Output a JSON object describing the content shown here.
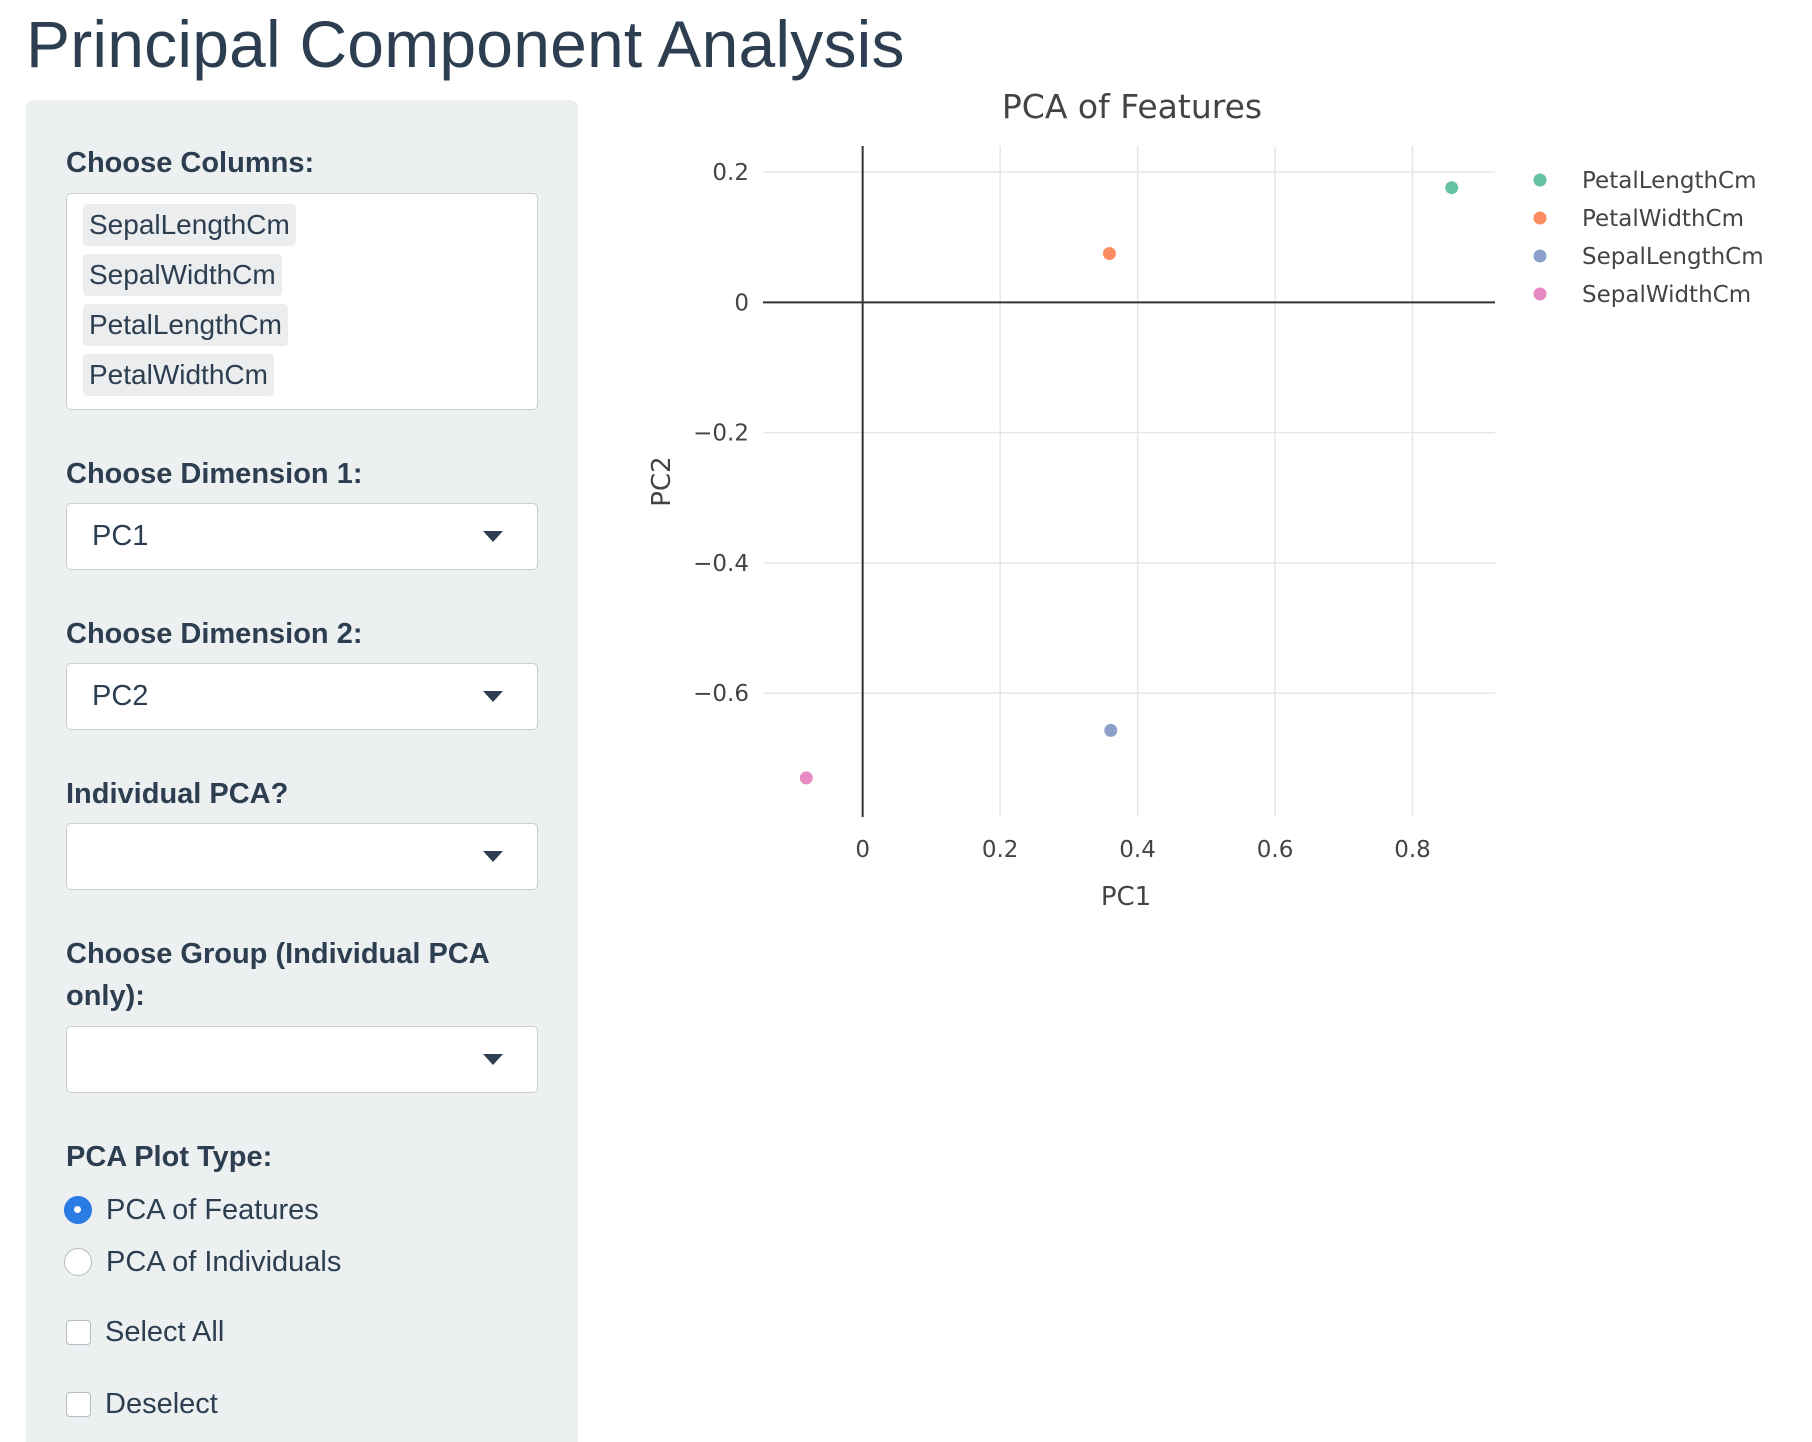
{
  "page": {
    "title": "Principal Component Analysis"
  },
  "sidebar": {
    "columns": {
      "label": "Choose Columns:",
      "selected": [
        "SepalLengthCm",
        "SepalWidthCm",
        "PetalLengthCm",
        "PetalWidthCm"
      ]
    },
    "dim1": {
      "label": "Choose Dimension 1:",
      "value": "PC1"
    },
    "dim2": {
      "label": "Choose Dimension 2:",
      "value": "PC2"
    },
    "individual": {
      "label": "Individual PCA?",
      "value": ""
    },
    "group": {
      "label": "Choose Group (Individual PCA only):",
      "value": ""
    },
    "plot_type": {
      "label": "PCA Plot Type:",
      "options": [
        {
          "label": "PCA of Features",
          "checked": true
        },
        {
          "label": "PCA of Individuals",
          "checked": false
        }
      ]
    },
    "select_all": {
      "label": "Select All",
      "checked": false
    },
    "deselect": {
      "label": "Deselect",
      "checked": false
    }
  },
  "chart_data": {
    "type": "scatter",
    "title": "PCA of Features",
    "xlabel": "PC1",
    "ylabel": "PC2",
    "xlim": [
      -0.145,
      0.92
    ],
    "ylim": [
      -0.79,
      0.24
    ],
    "xticks": [
      0,
      0.2,
      0.4,
      0.6,
      0.8
    ],
    "xtick_labels": [
      "0",
      "0.2",
      "0.4",
      "0.6",
      "0.8"
    ],
    "yticks": [
      0.2,
      0,
      -0.2,
      -0.4,
      -0.6
    ],
    "ytick_labels": [
      "0.2",
      "0",
      "−0.2",
      "−0.4",
      "−0.6"
    ],
    "grid": true,
    "legend_position": "top-right",
    "series": [
      {
        "name": "PetalLengthCm",
        "color": "#66c2a5",
        "x": [
          0.857
        ],
        "y": [
          0.176
        ]
      },
      {
        "name": "PetalWidthCm",
        "color": "#fc8d62",
        "x": [
          0.359
        ],
        "y": [
          0.075
        ]
      },
      {
        "name": "SepalLengthCm",
        "color": "#8da0cb",
        "x": [
          0.361
        ],
        "y": [
          -0.657
        ]
      },
      {
        "name": "SepalWidthCm",
        "color": "#e78ac3",
        "x": [
          -0.082
        ],
        "y": [
          -0.73
        ]
      }
    ]
  }
}
